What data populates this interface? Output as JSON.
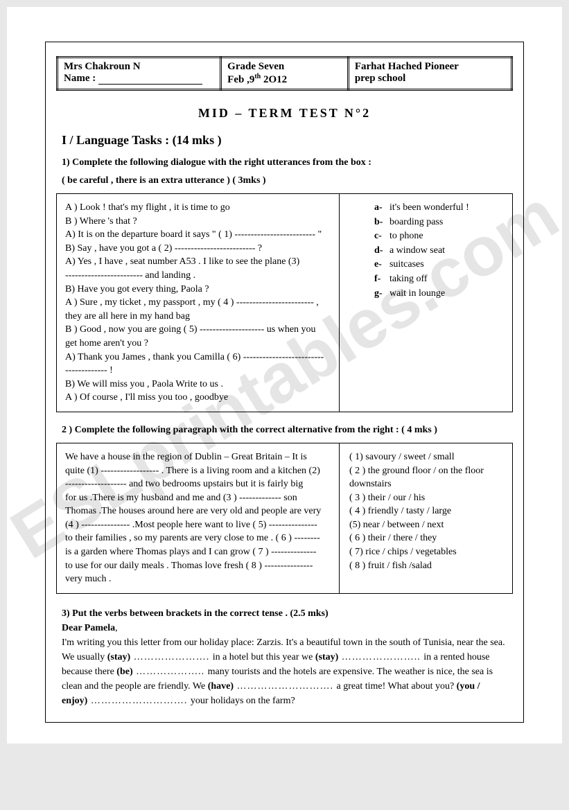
{
  "header": {
    "teacher": "Mrs Chakroun N",
    "name_label": "Name :",
    "grade": "Grade Seven",
    "date": "Feb ,9",
    "date_sup": "th",
    "year": " 2O12",
    "school_line1": "Farhat Hached Pioneer",
    "school_line2": "prep school"
  },
  "title": "MID – TERM TEST N°2",
  "section1": "I / Language Tasks : (14 mks )",
  "q1": {
    "prompt": "1) Complete the following dialogue with the right utterances from the box :",
    "hint": "( be careful , there is an extra utterance  ) ( 3mks )",
    "dialogue": [
      "A ) Look ! that's my flight , it is time to go",
      "B ) Where 's that ?",
      "A) It is on the departure board it says \" ( 1) ------------------------- \"",
      "B) Say , have you got a ( 2) -------------------------  ?",
      "A) Yes , I have , seat number A53 . I like to see the plane (3)",
      "------------------------ and landing .",
      "B) Have you got every thing, Paola ?",
      "A ) Sure , my ticket , my passport , my  ( 4 ) ------------------------ ,",
      "they are all here in my hand bag",
      "B ) Good , now you are going ( 5) -------------------- us when you",
      "get home aren't you ?",
      "A) Thank you James , thank you Camilla ( 6) -------------------------",
      "------------- !",
      "B)   We will miss you , Paola Write to us .",
      "A )  Of course , I'll miss you too , goodbye"
    ],
    "options": [
      {
        "l": "a-",
        "t": "it's been wonderful !"
      },
      {
        "l": "b-",
        "t": "boarding pass"
      },
      {
        "l": "c-",
        "t": "to phone"
      },
      {
        "l": "d-",
        "t": "a window seat"
      },
      {
        "l": "e-",
        "t": "suitcases"
      },
      {
        "l": "f-",
        "t": "taking off"
      },
      {
        "l": "g-",
        "t": "wait in lounge"
      }
    ]
  },
  "q2": {
    "prompt": "2 )  Complete the following paragraph with the correct alternative from the right :  ( 4 mks )",
    "paragraph": [
      "  We have a house in the region of Dublin – Great Britain – It is",
      "quite (1) ------------------ . There is a living room and a kitchen (2)",
      "------------------- and two bedrooms upstairs but it is fairly big",
      "for us .There is my husband and me and (3 ) ------------- son",
      "Thomas .The houses around here are very old and people are very",
      "(4 ) --------------- .Most people here want to live  ( 5) ---------------",
      "to their families , so my parents are very close to me . ( 6 ) --------",
      "is a garden where Thomas plays and I can grow ( 7 ) --------------",
      "to use for our daily meals . Thomas love fresh  ( 8 ) ---------------",
      "very much ."
    ],
    "options": [
      "( 1) savoury / sweet / small",
      "( 2 ) the ground floor / on the floor downstairs",
      "( 3 ) their / our / his",
      "( 4 ) friendly / tasty / large",
      "(5) near / between / next",
      "( 6 ) their / there / they",
      "( 7) rice  / chips / vegetables",
      "( 8 ) fruit / fish /salad"
    ]
  },
  "q3": {
    "prompt": " 3) Put the verbs between brackets in the correct tense .  (2.5 mks)",
    "dear": "Dear Pamela",
    "text_parts": {
      "p1": "I'm writing you this letter from our holiday place: Zarzis. It's  a beautiful town in the south of Tunisia, near the sea. We usually ",
      "v1": "(stay)",
      "d1": " …………………. ",
      "p2": "in a hotel but this year we ",
      "v2": "(stay)",
      "d2": " ………………….. ",
      "p3": "in a rented house because there ",
      "v3": "(be)",
      "d3": " ……………….. ",
      "p4": " many tourists and the hotels are expensive.  The weather is nice, the sea is clean and the people are friendly. We ",
      "v4": "(have)",
      "d4": " ………………………. ",
      "p5": "a great time! What about you? ",
      "v5": "(you / enjoy)",
      "d5": " ………………………. ",
      "p6": "your holidays on the farm?"
    }
  },
  "watermark": "ESLprintables.com"
}
